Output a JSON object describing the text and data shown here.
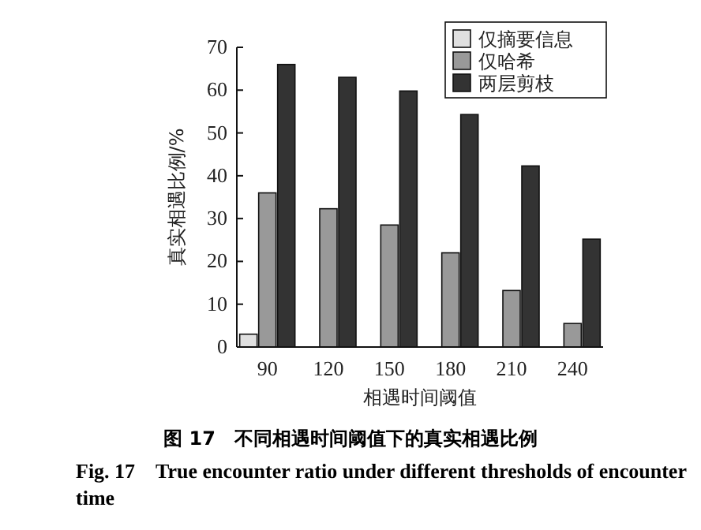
{
  "chart_data": {
    "type": "bar",
    "title": "图 17　不同相遇时间阈值下的真实相遇比例",
    "subtitle": "Fig. 17　True encounter ratio under different thresholds of encounter time",
    "xlabel": "相遇时间阈值",
    "ylabel": "真实相遇比例/%",
    "categories": [
      "90",
      "120",
      "150",
      "180",
      "210",
      "240"
    ],
    "series": [
      {
        "name": "仅摘要信息",
        "color": "#e0e0e0",
        "values": [
          3,
          0,
          0,
          0,
          0,
          0
        ]
      },
      {
        "name": "仅哈希",
        "color": "#999999",
        "values": [
          36,
          32.3,
          28.5,
          22,
          13.2,
          5.5
        ]
      },
      {
        "name": "两层剪枝",
        "color": "#333333",
        "values": [
          66,
          63,
          59.8,
          54.3,
          42.3,
          25.2
        ]
      }
    ],
    "ylim": [
      0,
      70
    ],
    "yticks": [
      0,
      10,
      20,
      30,
      40,
      50,
      60,
      70
    ],
    "legend": "top right"
  }
}
